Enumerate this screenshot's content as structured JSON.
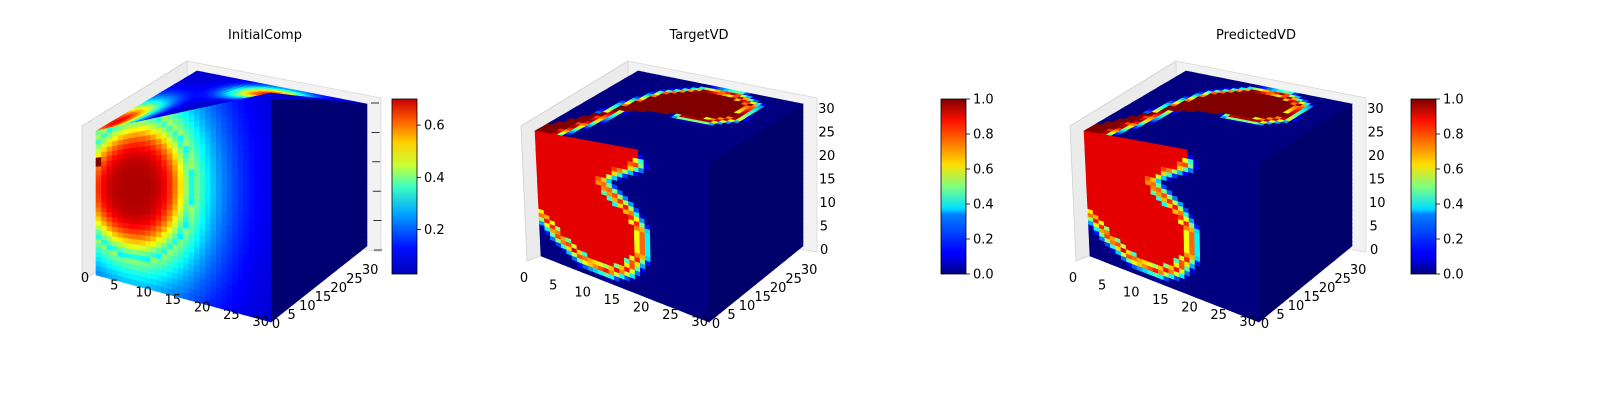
{
  "chart_data": [
    {
      "type": "voxel-3d",
      "title": "InitialComp",
      "field": "initial",
      "x_ticks": [
        "0",
        "5",
        "10",
        "15",
        "20",
        "25",
        "30"
      ],
      "y_ticks": [
        "0",
        "5",
        "10",
        "15",
        "20",
        "25",
        "30"
      ],
      "z_ticks": [],
      "xlim": [
        0,
        32
      ],
      "ylim": [
        0,
        32
      ],
      "zlim": [
        0,
        32
      ],
      "colorbar": {
        "min": 0.03,
        "max": 0.7,
        "ticks": [
          "0.2",
          "0.4",
          "0.6"
        ],
        "tick_values": [
          0.2,
          0.4,
          0.6
        ],
        "colormap": "jet"
      }
    },
    {
      "type": "voxel-3d",
      "title": "TargetVD",
      "field": "target",
      "x_ticks": [
        "0",
        "5",
        "10",
        "15",
        "20",
        "25",
        "30"
      ],
      "y_ticks": [
        "0",
        "5",
        "10",
        "15",
        "20",
        "25",
        "30"
      ],
      "z_ticks": [
        "0",
        "5",
        "10",
        "15",
        "20",
        "25",
        "30"
      ],
      "xlim": [
        0,
        32
      ],
      "ylim": [
        0,
        32
      ],
      "zlim": [
        0,
        32
      ],
      "colorbar": {
        "min": 0.0,
        "max": 1.0,
        "ticks": [
          "0.0",
          "0.2",
          "0.4",
          "0.6",
          "0.8",
          "1.0"
        ],
        "tick_values": [
          0.0,
          0.2,
          0.4,
          0.6,
          0.8,
          1.0
        ],
        "colormap": "jet"
      }
    },
    {
      "type": "voxel-3d",
      "title": "PredictedVD",
      "field": "predicted",
      "x_ticks": [
        "0",
        "5",
        "10",
        "15",
        "20",
        "25",
        "30"
      ],
      "y_ticks": [
        "0",
        "5",
        "10",
        "15",
        "20",
        "25",
        "30"
      ],
      "z_ticks": [
        "0",
        "5",
        "10",
        "15",
        "20",
        "25",
        "30"
      ],
      "xlim": [
        0,
        32
      ],
      "ylim": [
        0,
        32
      ],
      "zlim": [
        0,
        32
      ],
      "colorbar": {
        "min": 0.0,
        "max": 1.0,
        "ticks": [
          "0.0",
          "0.2",
          "0.4",
          "0.6",
          "0.8",
          "1.0"
        ],
        "tick_values": [
          0.0,
          0.2,
          0.4,
          0.6,
          0.8,
          1.0
        ],
        "colormap": "jet"
      }
    }
  ]
}
